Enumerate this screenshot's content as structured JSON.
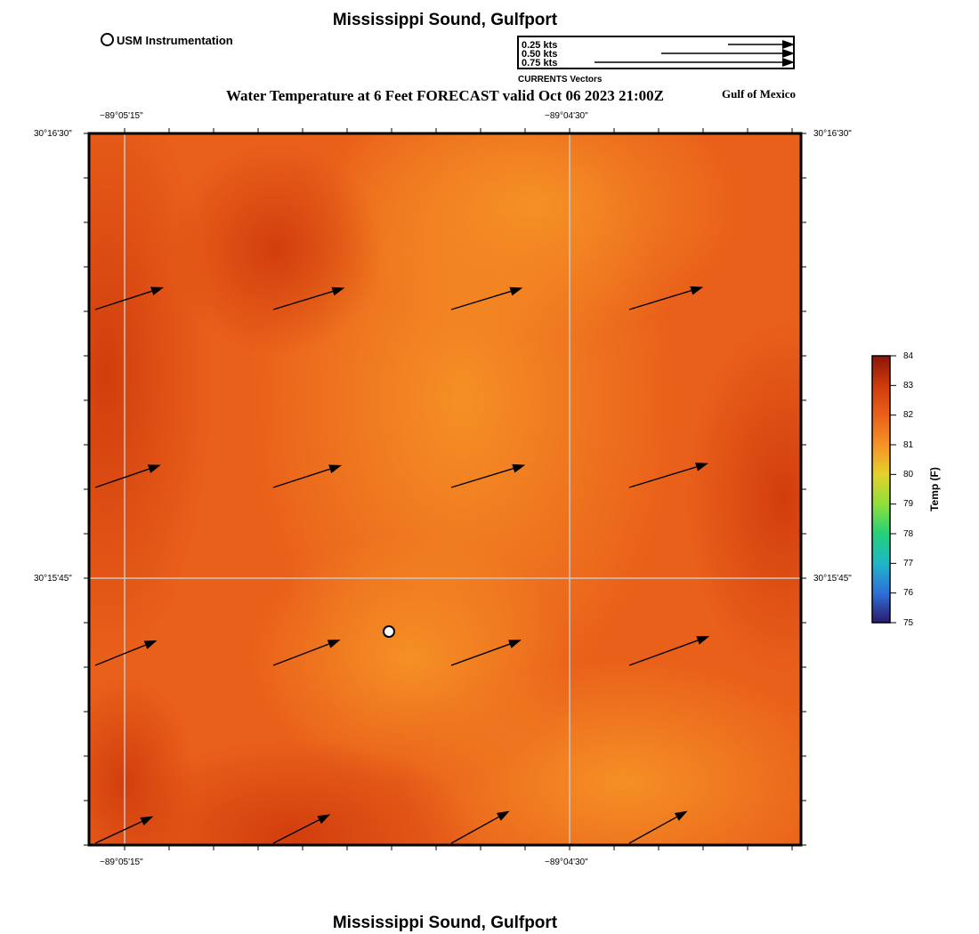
{
  "header": {
    "title": "Mississippi Sound, Gulfport",
    "subtitle": "Water Temperature at 6 Feet FORECAST valid Oct 06 2023 21:00Z",
    "region_label": "Gulf of Mexico",
    "footer_title": "Mississippi Sound, Gulfport"
  },
  "station_legend": {
    "label": "USM Instrumentation"
  },
  "vector_legend": {
    "title": "CURRENTS Vectors",
    "entries": [
      {
        "label": "0.25 kts",
        "speed": 0.25
      },
      {
        "label": "0.50 kts",
        "speed": 0.5
      },
      {
        "label": "0.75 kts",
        "speed": 0.75
      }
    ]
  },
  "map": {
    "lon_labels": [
      "−89°05'15\"",
      "−89°04'30\""
    ],
    "lat_labels": [
      "30°16'30\"",
      "30°15'45\""
    ],
    "fill_colors": {
      "dark": "#cf3a0c",
      "mid": "#e9601a",
      "light": "#f69226",
      "grid": "#c8c8c8"
    },
    "stations": [
      {
        "name": "USM Instrumentation"
      }
    ],
    "current_vectors": [
      {
        "row": 0,
        "col": 0,
        "speed": 0.27,
        "dir_deg": 72
      },
      {
        "row": 0,
        "col": 1,
        "speed": 0.28,
        "dir_deg": 73
      },
      {
        "row": 0,
        "col": 2,
        "speed": 0.28,
        "dir_deg": 73
      },
      {
        "row": 0,
        "col": 3,
        "speed": 0.29,
        "dir_deg": 73
      },
      {
        "row": 1,
        "col": 0,
        "speed": 0.26,
        "dir_deg": 71
      },
      {
        "row": 1,
        "col": 1,
        "speed": 0.27,
        "dir_deg": 72
      },
      {
        "row": 1,
        "col": 2,
        "speed": 0.29,
        "dir_deg": 73
      },
      {
        "row": 1,
        "col": 3,
        "speed": 0.31,
        "dir_deg": 73
      },
      {
        "row": 2,
        "col": 0,
        "speed": 0.25,
        "dir_deg": 68
      },
      {
        "row": 2,
        "col": 1,
        "speed": 0.27,
        "dir_deg": 69
      },
      {
        "row": 2,
        "col": 2,
        "speed": 0.28,
        "dir_deg": 70
      },
      {
        "row": 2,
        "col": 3,
        "speed": 0.32,
        "dir_deg": 70
      },
      {
        "row": 3,
        "col": 0,
        "speed": 0.24,
        "dir_deg": 65
      },
      {
        "row": 3,
        "col": 1,
        "speed": 0.24,
        "dir_deg": 63
      },
      {
        "row": 3,
        "col": 2,
        "speed": 0.25,
        "dir_deg": 61
      },
      {
        "row": 3,
        "col": 3,
        "speed": 0.25,
        "dir_deg": 61
      }
    ]
  },
  "colorbar": {
    "label": "Temp (F)",
    "ticks": [
      "84",
      "83",
      "82",
      "81",
      "80",
      "79",
      "78",
      "77",
      "76",
      "75"
    ],
    "min": 75,
    "max": 84,
    "colors": [
      "#2b1a6b",
      "#2f6fd8",
      "#1fb6c8",
      "#24d07a",
      "#8ee03a",
      "#e4d12c",
      "#f69226",
      "#e9601a",
      "#cf3a0c",
      "#8a1508"
    ]
  }
}
